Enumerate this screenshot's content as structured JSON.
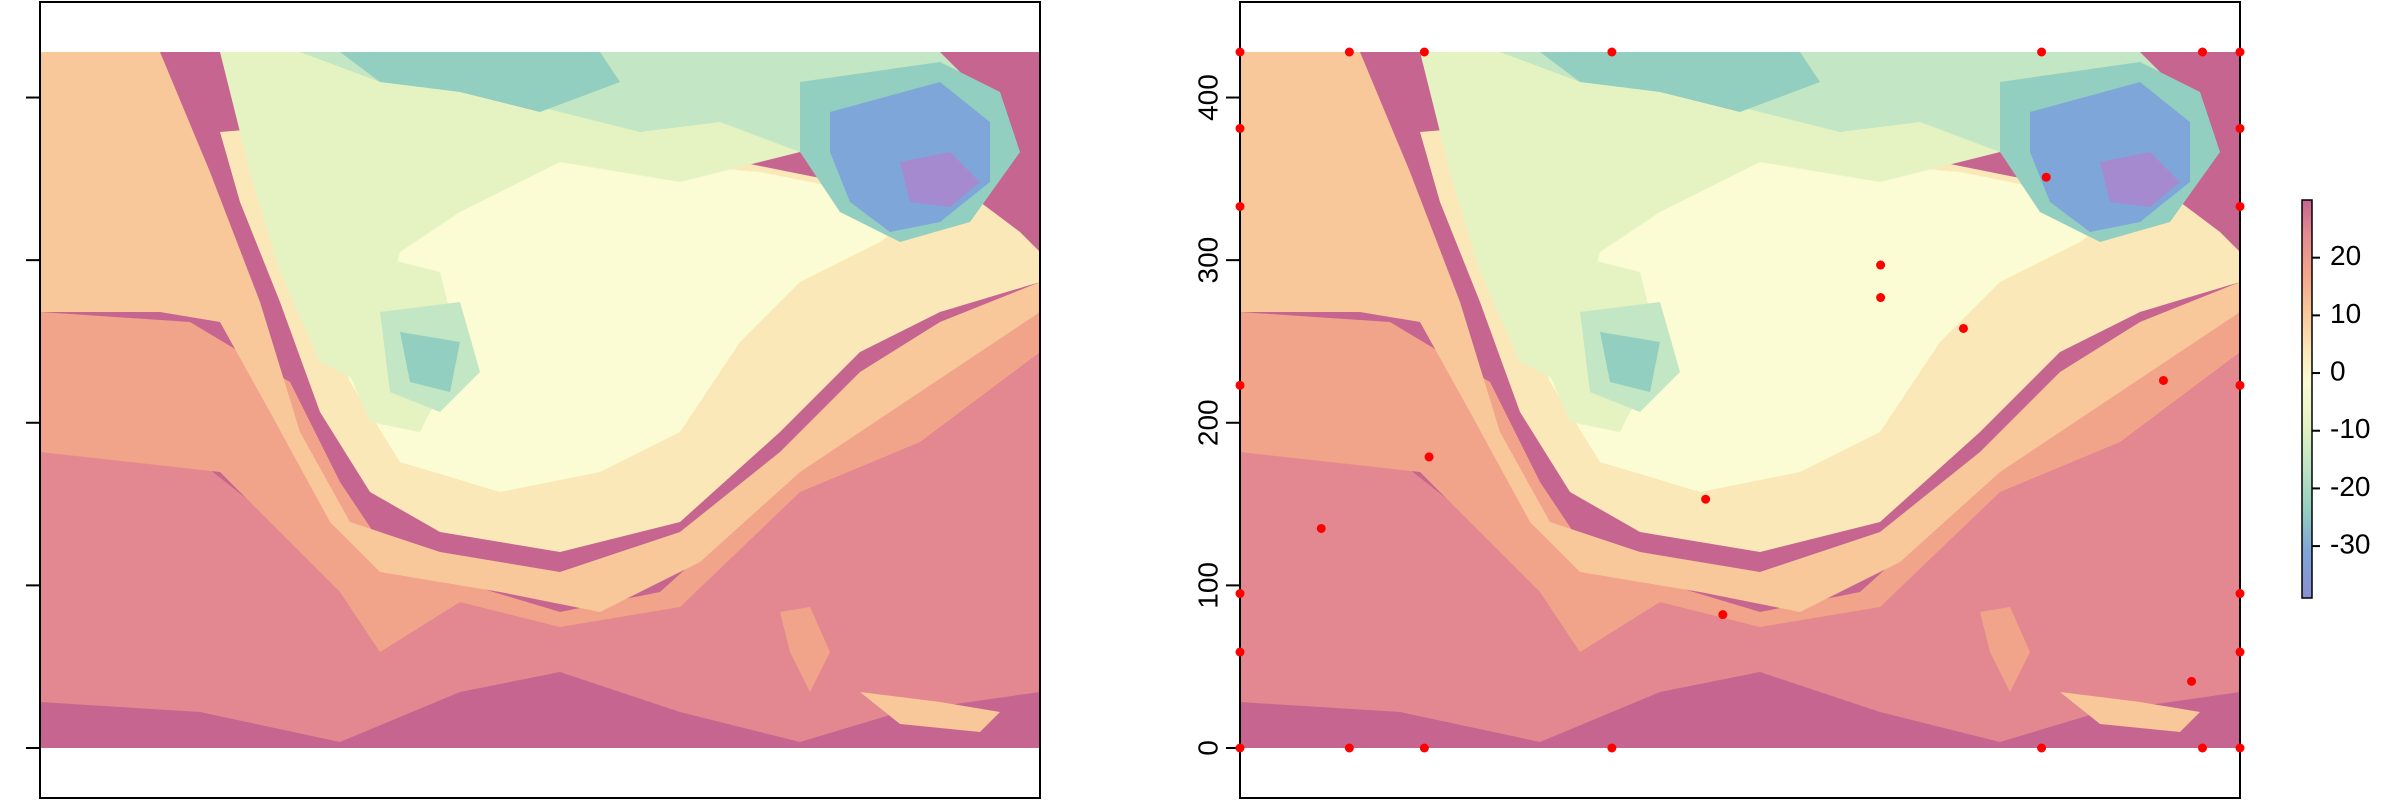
{
  "chart_data": [
    {
      "type": "heatmap",
      "title": "",
      "xlabel": "",
      "ylabel": "",
      "ylim": [
        -35,
        465
      ],
      "map_extent_y": [
        0,
        428
      ],
      "axis_tick_labels_visible": false,
      "y_ticks": [
        0,
        100,
        200,
        300,
        400
      ],
      "points": []
    },
    {
      "type": "heatmap",
      "title": "",
      "xlabel": "",
      "ylabel": "",
      "ylim": [
        -35,
        465
      ],
      "map_extent_y": [
        0,
        428
      ],
      "y_ticks": [
        0,
        100,
        200,
        300,
        400
      ],
      "y_tick_labels": [
        "0",
        "100",
        "200",
        "300",
        "400"
      ],
      "points_color": "#ff0000",
      "points": [
        {
          "x": 0,
          "y": 428
        },
        {
          "x": 70,
          "y": 428
        },
        {
          "x": 118,
          "y": 428
        },
        {
          "x": 238,
          "y": 428
        },
        {
          "x": 513,
          "y": 428
        },
        {
          "x": 616,
          "y": 428
        },
        {
          "x": 640,
          "y": 428
        },
        {
          "x": 0,
          "y": 381
        },
        {
          "x": 640,
          "y": 381
        },
        {
          "x": 0,
          "y": 333
        },
        {
          "x": 640,
          "y": 333
        },
        {
          "x": 516,
          "y": 351
        },
        {
          "x": 410,
          "y": 297
        },
        {
          "x": 410,
          "y": 277
        },
        {
          "x": 463,
          "y": 258
        },
        {
          "x": 0,
          "y": 223
        },
        {
          "x": 591,
          "y": 226
        },
        {
          "x": 640,
          "y": 223
        },
        {
          "x": 121,
          "y": 179
        },
        {
          "x": 298,
          "y": 153
        },
        {
          "x": 52,
          "y": 135
        },
        {
          "x": 0,
          "y": 95
        },
        {
          "x": 640,
          "y": 95
        },
        {
          "x": 309,
          "y": 82
        },
        {
          "x": 0,
          "y": 59
        },
        {
          "x": 640,
          "y": 59
        },
        {
          "x": 609,
          "y": 41
        },
        {
          "x": 0,
          "y": 0
        },
        {
          "x": 70,
          "y": 0
        },
        {
          "x": 118,
          "y": 0
        },
        {
          "x": 238,
          "y": 0
        },
        {
          "x": 513,
          "y": 0
        },
        {
          "x": 616,
          "y": 0
        },
        {
          "x": 640,
          "y": 0
        }
      ]
    }
  ],
  "legend": {
    "ticks": [
      20,
      10,
      0,
      -10,
      -20,
      -30
    ],
    "tick_labels": [
      "20",
      "10",
      "0",
      "-10",
      "-20",
      "-30"
    ],
    "range": [
      -39,
      30
    ],
    "colors": {
      "purple": "#8a8fcf",
      "blue": "#7fa6d8",
      "teal": "#92cfc0",
      "green": "#c3e6c4",
      "light_green": "#e5f3c3",
      "pale_yellow": "#fbfbd4",
      "cream": "#fbe8b8",
      "peach": "#f8c79a",
      "salmon": "#f2a48a",
      "rose": "#e38891",
      "magenta": "#c6658f"
    }
  },
  "map_colors": {
    "purple": "#a58ad0",
    "blue": "#7fa6d8",
    "teal": "#92cfc0",
    "green": "#c3e6c4",
    "light_green": "#e5f3c3",
    "pale_yellow": "#fbfbd4",
    "cream": "#fbe8b8",
    "peach": "#f8c79a",
    "salmon": "#f2a48a",
    "rose": "#e38891",
    "magenta": "#c6658f"
  }
}
